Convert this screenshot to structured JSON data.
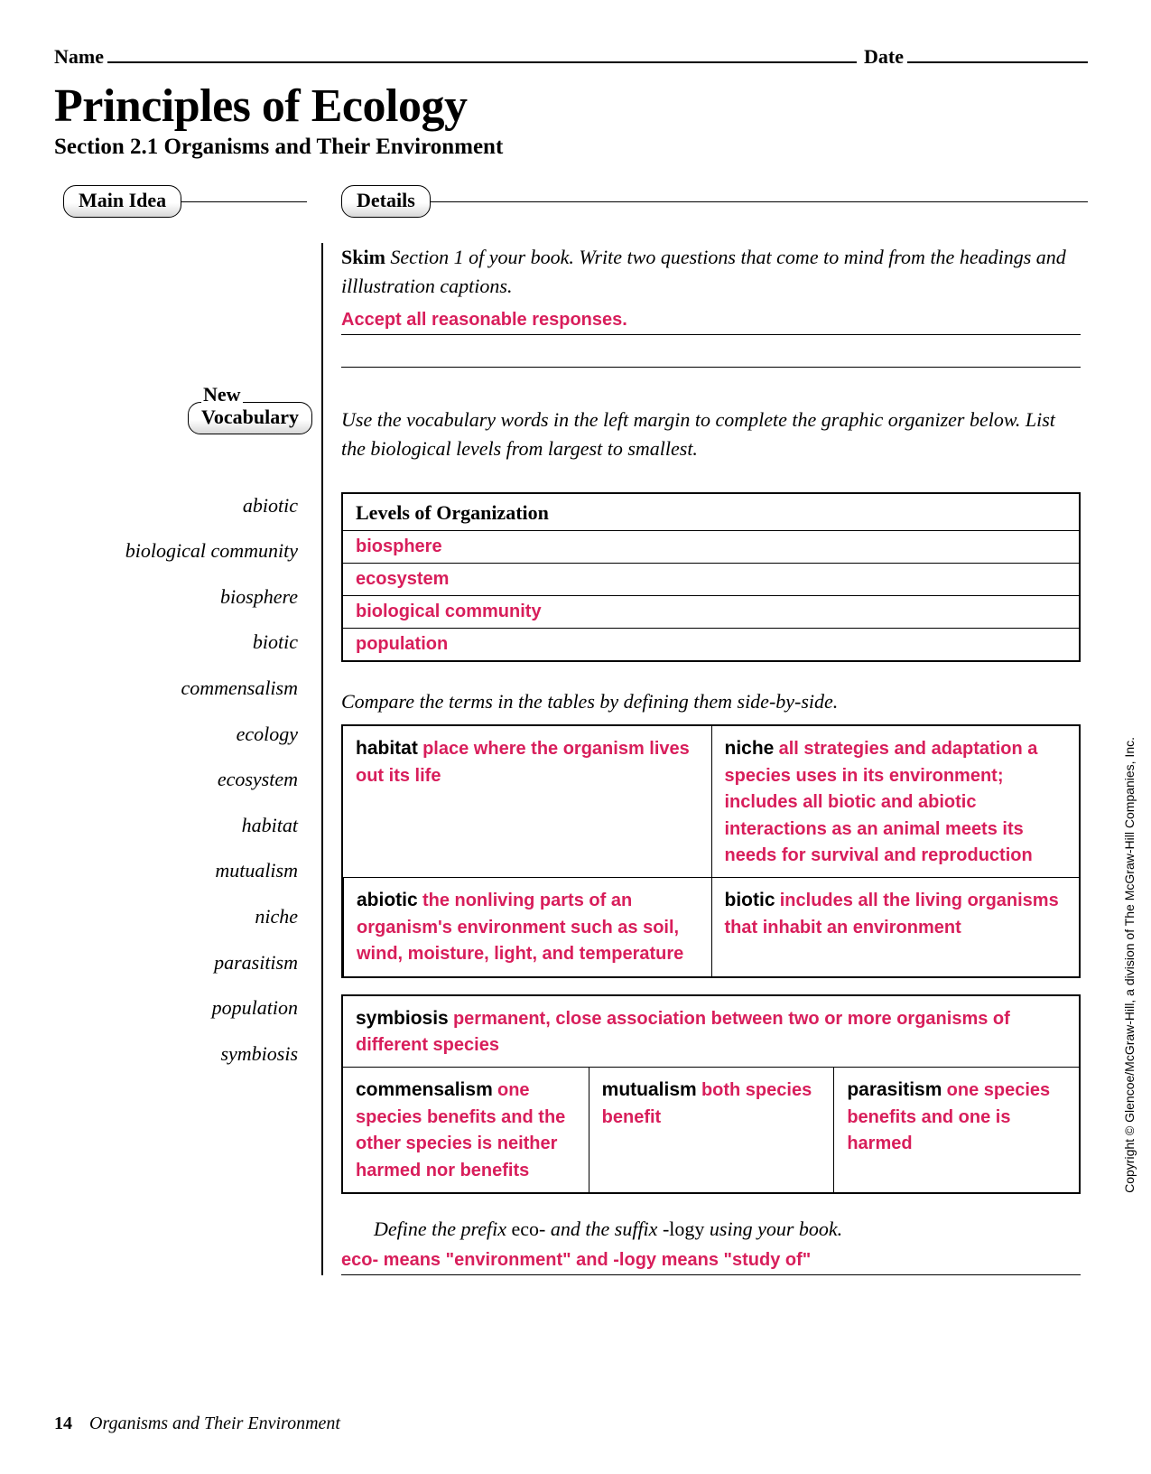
{
  "header": {
    "name_label": "Name",
    "date_label": "Date"
  },
  "title": "Principles of Ecology",
  "subtitle": "Section 2.1  Organisms and Their Environment",
  "pills": {
    "main_idea": "Main Idea",
    "details": "Details",
    "new": "New",
    "vocabulary": "Vocabulary"
  },
  "skim": {
    "bold": "Skim",
    "text": " Section 1 of your book. Write two questions that come to mind from the headings and illlustration captions.",
    "answer": "Accept all reasonable responses."
  },
  "vocab_instr": "Use the vocabulary words in the left margin to complete the graphic organizer below. List the biological levels from largest to smallest.",
  "vocab_words": [
    "abiotic",
    "biological community",
    "biosphere",
    "biotic",
    "commensalism",
    "ecology",
    "ecosystem",
    "habitat",
    "mutualism",
    "niche",
    "parasitism",
    "population",
    "symbiosis"
  ],
  "levels": {
    "header": "Levels of Organization",
    "rows": [
      "biosphere",
      "ecosystem",
      "biological community",
      "population"
    ]
  },
  "compare_instr": "Compare the terms in the tables by defining them side-by-side.",
  "compare": {
    "habitat_term": "habitat",
    "habitat_def": "place where the organism lives out its life",
    "niche_term": "niche",
    "niche_def": "all strategies and adaptation a species uses in its environment; includes all biotic and abiotic interactions as an animal meets its needs for survival and reproduction",
    "abiotic_term": "abiotic",
    "abiotic_def": "the nonliving parts of an organism's environment such as soil, wind, moisture, light, and temperature",
    "biotic_term": "biotic",
    "biotic_def": "includes all the living organisms that inhabit an environment"
  },
  "symbiosis": {
    "term": "symbiosis",
    "def": "permanent, close association between two or more organisms of different species",
    "commensalism_term": "commensalism",
    "commensalism_def": "one species benefits and the other species is neither harmed nor benefits",
    "mutualism_term": "mutualism",
    "mutualism_def": "both species benefit",
    "parasitism_term": "parasitism",
    "parasitism_def": "one species benefits and one is harmed"
  },
  "define": {
    "pre": "Define the prefix ",
    "eco": "eco-",
    "mid": " and the suffix ",
    "logy": "-logy",
    "post": " using your book.",
    "answer": "eco- means \"environment\" and -logy means \"study of\""
  },
  "footer": {
    "page": "14",
    "title": "Organisms and Their Environment"
  },
  "copyright": "Copyright © Glencoe/McGraw-Hill, a division of The McGraw-Hill Companies, Inc.",
  "colors": {
    "answer_red": "#d81e5b",
    "text": "#000000",
    "background": "#ffffff"
  }
}
